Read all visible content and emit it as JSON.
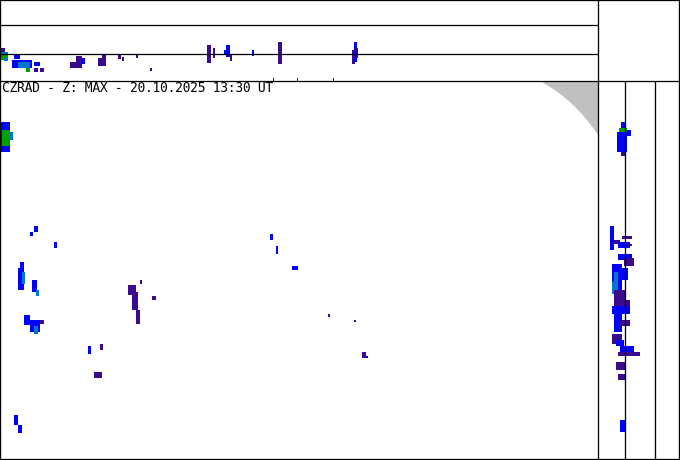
{
  "title": "CZRAD - Z: MAX - 20.10.2025 13:30 UT",
  "colors": {
    "frame": "#000000",
    "background": "#ffffff",
    "outside_range": "#c0c0c0",
    "echo_weak": "#3c0a8c",
    "echo_low": "#0000ff",
    "echo_mid": "#0078c8",
    "echo_high": "#00a000"
  }
}
